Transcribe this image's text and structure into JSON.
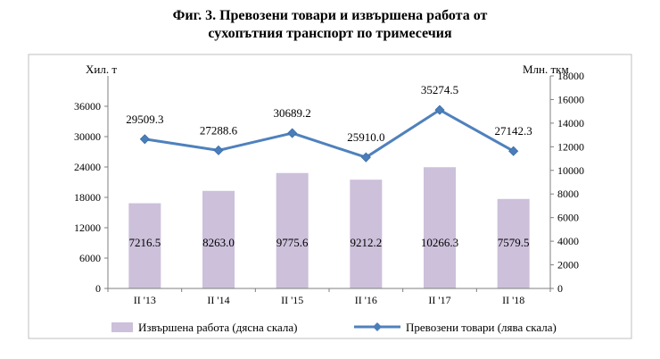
{
  "title_line1": "Фиг. 3. Превозени товари и извършена работа от",
  "title_line2": "сухопътния транспорт по тримесечия",
  "chart_data": {
    "type": "bar+line",
    "categories": [
      "II '13",
      "II '14",
      "II '15",
      "II '16",
      "II '17",
      "II '18"
    ],
    "left_axis": {
      "unit": "Хил. т",
      "ylim": [
        0,
        42000
      ],
      "ticks": [
        0,
        6000,
        12000,
        18000,
        24000,
        30000,
        36000
      ]
    },
    "right_axis": {
      "unit": "Млн. ткм",
      "ylim": [
        0,
        18000
      ],
      "ticks": [
        0,
        2000,
        4000,
        6000,
        8000,
        10000,
        12000,
        14000,
        16000,
        18000
      ]
    },
    "series": [
      {
        "name": "Извършена работа (дясна скала)",
        "type": "bar",
        "axis": "right",
        "values": [
          7216.5,
          8263.0,
          9775.6,
          9212.2,
          10266.3,
          7579.5
        ],
        "labels": [
          "7216.5",
          "8263.0",
          "9775.6",
          "9212.2",
          "10266.3",
          "7579.5"
        ],
        "color": "#ccc0da"
      },
      {
        "name": "Превозени товари (лява скала)",
        "type": "line",
        "axis": "left",
        "values": [
          29509.3,
          27288.6,
          30689.2,
          25910.0,
          35274.5,
          27142.3
        ],
        "labels": [
          "29509.3",
          "27288.6",
          "30689.2",
          "25910.0",
          "35274.5",
          "27142.3"
        ],
        "color": "#4f81bd",
        "marker_color": "#4a7ebb"
      }
    ],
    "legend_position": "bottom",
    "grid": false
  }
}
